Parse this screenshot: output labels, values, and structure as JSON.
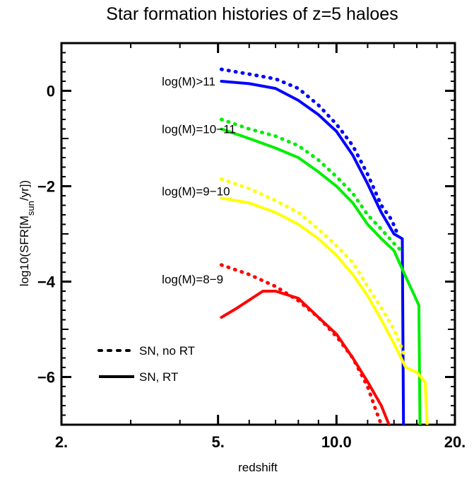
{
  "chart_data": {
    "type": "line",
    "title": "Star formation histories of z=5 haloes",
    "xlabel": "redshift",
    "ylabel": "log10(SFR[M",
    "ylabel_sub": "sun",
    "ylabel_end": "/yr])",
    "x_scale": "log",
    "xlim": [
      2,
      20
    ],
    "ylim": [
      -7,
      1
    ],
    "x_ticks": [
      {
        "value": 2,
        "label": "2."
      },
      {
        "value": 5,
        "label": "5."
      },
      {
        "value": 10,
        "label": "10.0"
      },
      {
        "value": 20,
        "label": "20."
      }
    ],
    "y_ticks": [
      {
        "value": 0,
        "label": "0"
      },
      {
        "value": -2,
        "label": "-2"
      },
      {
        "value": -4,
        "label": "-4"
      },
      {
        "value": -6,
        "label": "-6"
      }
    ],
    "annotations": [
      {
        "text": "log(M)>11",
        "x": 3.6,
        "y": 0.2
      },
      {
        "text": "log(M)=10−11",
        "x": 3.6,
        "y": -0.8
      },
      {
        "text": "log(M)=9−10",
        "x": 3.6,
        "y": -2.1
      },
      {
        "text": "log(M)=8−9",
        "x": 3.6,
        "y": -3.95
      }
    ],
    "legend": {
      "position": "bottom-left",
      "entries": [
        {
          "label": "SN, no RT",
          "style": "dotted"
        },
        {
          "label": "SN, RT",
          "style": "solid"
        }
      ]
    },
    "series": [
      {
        "group": "log(M)>11",
        "style": "dotted",
        "color": "#0000ff",
        "points": [
          [
            5.1,
            0.45
          ],
          [
            6,
            0.35
          ],
          [
            7,
            0.25
          ],
          [
            8,
            0.05
          ],
          [
            9,
            -0.3
          ],
          [
            10,
            -0.7
          ],
          [
            11,
            -1.15
          ],
          [
            12,
            -1.75
          ],
          [
            13,
            -2.4
          ],
          [
            13.8,
            -2.7
          ],
          [
            14.3,
            -3.0
          ]
        ]
      },
      {
        "group": "log(M)>11",
        "style": "solid",
        "color": "#0000ff",
        "points": [
          [
            5.1,
            0.2
          ],
          [
            6,
            0.15
          ],
          [
            7,
            0.05
          ],
          [
            8,
            -0.2
          ],
          [
            9,
            -0.5
          ],
          [
            10,
            -0.85
          ],
          [
            11,
            -1.35
          ],
          [
            12,
            -1.95
          ],
          [
            13,
            -2.55
          ],
          [
            14,
            -3.0
          ],
          [
            14.7,
            -3.1
          ],
          [
            14.8,
            -7
          ]
        ]
      },
      {
        "group": "log(M)=10-11",
        "style": "dotted",
        "color": "#00ee00",
        "points": [
          [
            5.1,
            -0.6
          ],
          [
            6,
            -0.8
          ],
          [
            7,
            -0.95
          ],
          [
            8,
            -1.15
          ],
          [
            9,
            -1.45
          ],
          [
            10,
            -1.8
          ],
          [
            11,
            -2.15
          ],
          [
            12,
            -2.6
          ],
          [
            13,
            -2.9
          ],
          [
            14,
            -3.2
          ],
          [
            14.8,
            -3.4
          ]
        ]
      },
      {
        "group": "log(M)=10-11",
        "style": "solid",
        "color": "#00ee00",
        "points": [
          [
            5.1,
            -0.8
          ],
          [
            6,
            -1.0
          ],
          [
            7,
            -1.2
          ],
          [
            8,
            -1.4
          ],
          [
            9,
            -1.7
          ],
          [
            10,
            -2.0
          ],
          [
            11,
            -2.35
          ],
          [
            12,
            -2.8
          ],
          [
            13,
            -3.1
          ],
          [
            14,
            -3.35
          ],
          [
            15,
            -3.9
          ],
          [
            15.8,
            -4.3
          ],
          [
            16.2,
            -4.5
          ],
          [
            16.3,
            -7
          ]
        ]
      },
      {
        "group": "log(M)=9-10",
        "style": "dotted",
        "color": "#ffff00",
        "points": [
          [
            5.1,
            -1.85
          ],
          [
            6,
            -2.05
          ],
          [
            7,
            -2.3
          ],
          [
            8,
            -2.55
          ],
          [
            9,
            -2.9
          ],
          [
            10,
            -3.25
          ],
          [
            11,
            -3.6
          ],
          [
            12,
            -4.1
          ],
          [
            13,
            -4.55
          ],
          [
            14,
            -5.0
          ],
          [
            15,
            -5.6
          ]
        ]
      },
      {
        "group": "log(M)=9-10",
        "style": "solid",
        "color": "#ffff00",
        "points": [
          [
            5.1,
            -2.25
          ],
          [
            6,
            -2.35
          ],
          [
            7,
            -2.55
          ],
          [
            8,
            -2.8
          ],
          [
            9,
            -3.1
          ],
          [
            10,
            -3.45
          ],
          [
            11,
            -3.85
          ],
          [
            12,
            -4.3
          ],
          [
            13,
            -4.8
          ],
          [
            14,
            -5.3
          ],
          [
            15,
            -5.8
          ],
          [
            16,
            -5.9
          ],
          [
            16.8,
            -6.1
          ],
          [
            17.0,
            -7
          ]
        ]
      },
      {
        "group": "log(M)=8-9",
        "style": "dotted",
        "color": "#ff0000",
        "points": [
          [
            5.1,
            -3.65
          ],
          [
            6,
            -3.85
          ],
          [
            7,
            -4.1
          ],
          [
            8,
            -4.4
          ],
          [
            9,
            -4.75
          ],
          [
            10,
            -5.15
          ],
          [
            11,
            -5.6
          ],
          [
            12,
            -6.2
          ],
          [
            12.6,
            -6.7
          ],
          [
            13,
            -7.0
          ]
        ]
      },
      {
        "group": "log(M)=8-9",
        "style": "solid",
        "color": "#ff0000",
        "points": [
          [
            5.1,
            -4.75
          ],
          [
            5.6,
            -4.55
          ],
          [
            6.5,
            -4.2
          ],
          [
            7,
            -4.2
          ],
          [
            8,
            -4.35
          ],
          [
            9,
            -4.75
          ],
          [
            10,
            -5.1
          ],
          [
            11,
            -5.6
          ],
          [
            12,
            -6.1
          ],
          [
            13,
            -6.6
          ],
          [
            13.6,
            -7.0
          ]
        ]
      }
    ]
  }
}
